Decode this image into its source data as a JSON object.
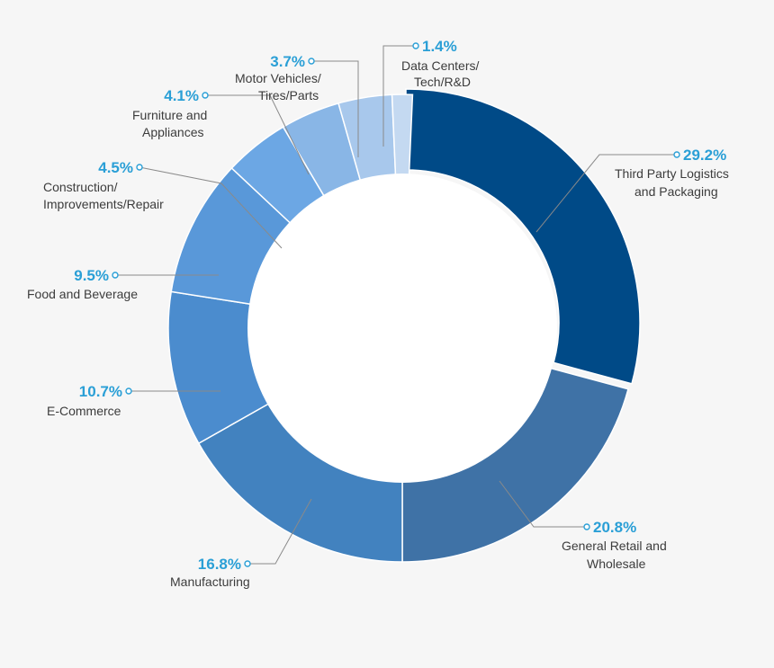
{
  "chart_data": {
    "type": "pie",
    "title": "",
    "donut": true,
    "slices": [
      {
        "value": 29.2,
        "pct_label": "29.2%",
        "lines": [
          "Third Party Logistics",
          "and Packaging"
        ],
        "color": "#004a87"
      },
      {
        "value": 20.8,
        "pct_label": "20.8%",
        "lines": [
          "General Retail and",
          "Wholesale"
        ],
        "color": "#3f72a6"
      },
      {
        "value": 16.8,
        "pct_label": "16.8%",
        "lines": [
          "Manufacturing"
        ],
        "color": "#4282bf"
      },
      {
        "value": 10.7,
        "pct_label": "10.7%",
        "lines": [
          "E-Commerce"
        ],
        "color": "#4b8cce"
      },
      {
        "value": 9.5,
        "pct_label": "9.5%",
        "lines": [
          "Food and Beverage"
        ],
        "color": "#5998d9"
      },
      {
        "value": 4.5,
        "pct_label": "4.5%",
        "lines": [
          "Construction/",
          "Improvements/Repair"
        ],
        "color": "#6ca7e4"
      },
      {
        "value": 4.1,
        "pct_label": "4.1%",
        "lines": [
          "Furniture and",
          "Appliances"
        ],
        "color": "#89b6e6"
      },
      {
        "value": 3.7,
        "pct_label": "3.7%",
        "lines": [
          "Motor Vehicles/",
          "Tires/Parts"
        ],
        "color": "#a8c8ec"
      },
      {
        "value": 1.4,
        "pct_label": "1.4%",
        "lines": [
          "Data Centers/",
          "Tech/R&D"
        ],
        "color": "#c4d9f1"
      }
    ]
  }
}
